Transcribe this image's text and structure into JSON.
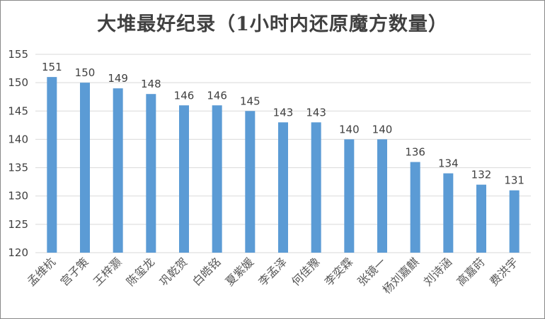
{
  "chart_data": {
    "type": "bar",
    "title": "大堆最好纪录（1小时内还原魔方数量）",
    "xlabel": "",
    "ylabel": "",
    "categories": [
      "孟维杭",
      "宫子策",
      "王梓灏",
      "陈玺龙",
      "巩乾贺",
      "白皓铭",
      "夏紫媛",
      "李孟泽",
      "何佳豫",
      "李奕霖",
      "张镜一",
      "杨刘嘉麒",
      "刘诗涵",
      "高嘉莳",
      "费洪宇"
    ],
    "values": [
      151,
      150,
      149,
      148,
      146,
      146,
      145,
      143,
      143,
      140,
      140,
      136,
      134,
      132,
      131
    ],
    "ylim": [
      120,
      155
    ],
    "yticks": [
      120,
      125,
      130,
      135,
      140,
      145,
      150,
      155
    ],
    "grid": true,
    "legend": "none",
    "bar_color": "#5b9bd5",
    "grid_color": "#d9d9d9"
  }
}
